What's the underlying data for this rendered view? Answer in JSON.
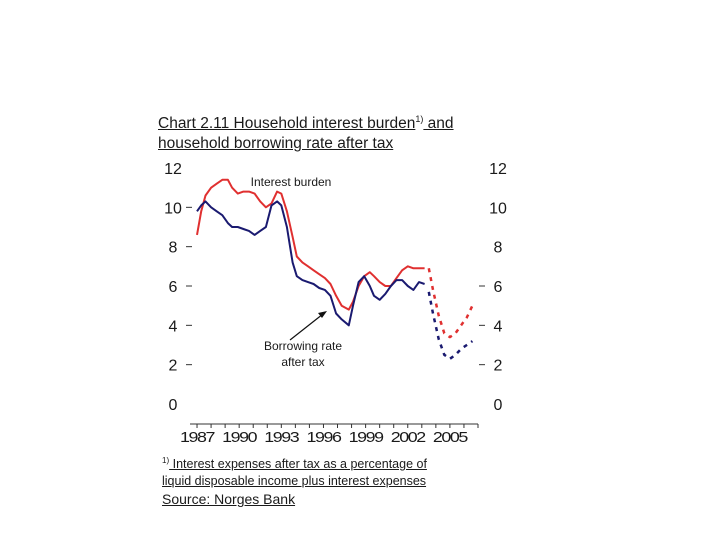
{
  "title": {
    "line1_a": "Chart 2.11 Household interest burden",
    "sup": "1)",
    "line1_b": " and",
    "line2": "household borrowing rate after tax"
  },
  "footnote": {
    "marker": "1)",
    "line1": " Interest expenses after tax as a percentage of",
    "line2": "liquid disposable income plus interest expenses"
  },
  "source": "Source: Norges Bank",
  "chart_data": {
    "type": "line",
    "xlim": [
      1986.5,
      2007.0
    ],
    "ylim": [
      0,
      12
    ],
    "x_ticks": [
      1987,
      1990,
      1993,
      1996,
      1999,
      2002,
      2005
    ],
    "y_ticks_left": [
      0,
      2,
      4,
      6,
      8,
      10,
      12
    ],
    "y_ticks_right": [
      0,
      2,
      4,
      6,
      8,
      10,
      12
    ],
    "annotations": [
      "Interest burden",
      "Borrowing rate after tax"
    ],
    "series": [
      {
        "color": "#e03030",
        "values": [
          [
            1987.0,
            8.6
          ],
          [
            1987.3,
            9.8
          ],
          [
            1987.6,
            10.6
          ],
          [
            1988.0,
            11.0
          ],
          [
            1988.4,
            11.2
          ],
          [
            1988.8,
            11.4
          ],
          [
            1989.2,
            11.4
          ],
          [
            1989.5,
            11.0
          ],
          [
            1989.9,
            10.7
          ],
          [
            1990.3,
            10.8
          ],
          [
            1990.7,
            10.8
          ],
          [
            1991.1,
            10.7
          ],
          [
            1991.5,
            10.3
          ],
          [
            1991.9,
            10.0
          ],
          [
            1992.3,
            10.2
          ],
          [
            1992.7,
            10.8
          ],
          [
            1993.0,
            10.7
          ],
          [
            1993.4,
            9.8
          ],
          [
            1993.8,
            8.5
          ],
          [
            1994.1,
            7.5
          ],
          [
            1994.5,
            7.2
          ],
          [
            1994.9,
            7.0
          ],
          [
            1995.3,
            6.8
          ],
          [
            1995.7,
            6.6
          ],
          [
            1996.1,
            6.4
          ],
          [
            1996.5,
            6.1
          ],
          [
            1996.9,
            5.5
          ],
          [
            1997.3,
            5.0
          ],
          [
            1997.8,
            4.8
          ],
          [
            1998.1,
            5.2
          ],
          [
            1998.5,
            6.0
          ],
          [
            1998.9,
            6.5
          ],
          [
            1999.3,
            6.7
          ],
          [
            1999.6,
            6.5
          ],
          [
            2000.0,
            6.2
          ],
          [
            2000.4,
            6.0
          ],
          [
            2000.8,
            6.0
          ],
          [
            2001.2,
            6.4
          ],
          [
            2001.6,
            6.8
          ],
          [
            2002.0,
            7.0
          ],
          [
            2002.4,
            6.9
          ],
          [
            2002.8,
            6.9
          ],
          [
            2003.2,
            6.9
          ]
        ]
      },
      {
        "color": "#e03030",
        "dashed": true,
        "values": [
          [
            2003.5,
            6.9
          ],
          [
            2003.8,
            5.8
          ],
          [
            2004.2,
            4.5
          ],
          [
            2004.6,
            3.6
          ],
          [
            2005.0,
            3.4
          ],
          [
            2005.4,
            3.6
          ],
          [
            2005.8,
            4.0
          ],
          [
            2006.2,
            4.4
          ],
          [
            2006.6,
            5.0
          ]
        ]
      },
      {
        "color": "#1a1a70",
        "values": [
          [
            1987.0,
            9.8
          ],
          [
            1987.3,
            10.1
          ],
          [
            1987.6,
            10.3
          ],
          [
            1988.0,
            10.0
          ],
          [
            1988.4,
            9.8
          ],
          [
            1988.8,
            9.6
          ],
          [
            1989.2,
            9.2
          ],
          [
            1989.5,
            9.0
          ],
          [
            1989.9,
            9.0
          ],
          [
            1990.3,
            8.9
          ],
          [
            1990.7,
            8.8
          ],
          [
            1991.1,
            8.6
          ],
          [
            1991.5,
            8.8
          ],
          [
            1991.9,
            9.0
          ],
          [
            1992.3,
            10.1
          ],
          [
            1992.7,
            10.3
          ],
          [
            1993.0,
            10.1
          ],
          [
            1993.4,
            9.0
          ],
          [
            1993.8,
            7.2
          ],
          [
            1994.1,
            6.5
          ],
          [
            1994.5,
            6.3
          ],
          [
            1994.9,
            6.2
          ],
          [
            1995.3,
            6.1
          ],
          [
            1995.7,
            5.9
          ],
          [
            1996.1,
            5.8
          ],
          [
            1996.5,
            5.5
          ],
          [
            1996.9,
            4.6
          ],
          [
            1997.3,
            4.3
          ],
          [
            1997.8,
            4.0
          ],
          [
            1998.1,
            5.0
          ],
          [
            1998.5,
            6.2
          ],
          [
            1998.9,
            6.5
          ],
          [
            1999.3,
            6.0
          ],
          [
            1999.6,
            5.5
          ],
          [
            2000.0,
            5.3
          ],
          [
            2000.4,
            5.6
          ],
          [
            2000.8,
            6.0
          ],
          [
            2001.2,
            6.3
          ],
          [
            2001.6,
            6.3
          ],
          [
            2002.0,
            6.0
          ],
          [
            2002.4,
            5.8
          ],
          [
            2002.8,
            6.2
          ],
          [
            2003.2,
            6.1
          ]
        ]
      },
      {
        "color": "#1a1a70",
        "dashed": true,
        "values": [
          [
            2003.5,
            5.7
          ],
          [
            2003.8,
            4.6
          ],
          [
            2004.2,
            3.3
          ],
          [
            2004.6,
            2.5
          ],
          [
            2005.0,
            2.3
          ],
          [
            2005.4,
            2.5
          ],
          [
            2005.8,
            2.8
          ],
          [
            2006.2,
            3.0
          ],
          [
            2006.6,
            3.2
          ]
        ]
      }
    ]
  }
}
